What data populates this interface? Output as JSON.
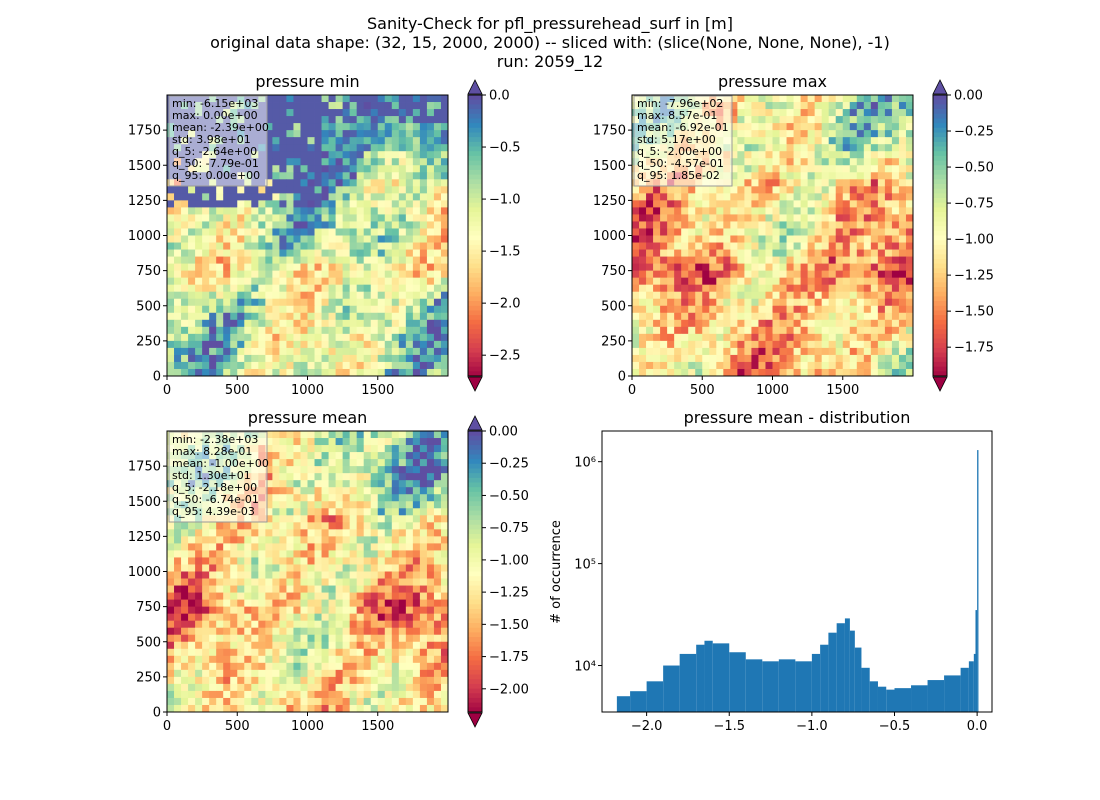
{
  "figure": {
    "title_lines": [
      "Sanity-Check for pfl_pressurehead_surf in [m]",
      "original data shape: (32, 15, 2000, 2000) -- sliced with: (slice(None, None, None), -1)",
      "run: 2059_12"
    ]
  },
  "chart_data": [
    {
      "type": "heatmap",
      "title": "pressure min",
      "colormap": "Spectral",
      "xlim": [
        0,
        2000
      ],
      "ylim": [
        0,
        2000
      ],
      "x_ticks": [
        "0",
        "500",
        "1000",
        "1500"
      ],
      "y_ticks": [
        "0",
        "250",
        "500",
        "750",
        "1000",
        "1250",
        "1500",
        "1750"
      ],
      "colorbar": {
        "range": [
          -2.7,
          0.0
        ],
        "extend": "both",
        "ticks": [
          "0.0",
          "−0.5",
          "−1.0",
          "−1.5",
          "−2.0",
          "−2.5"
        ]
      },
      "stats": [
        "min: -6.15e+03",
        "max: 0.00e+00",
        "mean: -2.39e+00",
        "std: 3.98e+01",
        "q_5: -2.64e+00",
        "q_50: -7.79e-01",
        "q_95: 0.00e+00"
      ]
    },
    {
      "type": "heatmap",
      "title": "pressure max",
      "colormap": "Spectral",
      "xlim": [
        0,
        2000
      ],
      "ylim": [
        0,
        2000
      ],
      "x_ticks": [
        "0",
        "500",
        "1000",
        "1500"
      ],
      "y_ticks": [
        "0",
        "250",
        "500",
        "750",
        "1000",
        "1250",
        "1500",
        "1750"
      ],
      "colorbar": {
        "range": [
          -1.95,
          0.0
        ],
        "extend": "both",
        "ticks": [
          "0.00",
          "−0.25",
          "−0.50",
          "−0.75",
          "−1.00",
          "−1.25",
          "−1.50",
          "−1.75"
        ]
      },
      "stats": [
        "min: -7.96e+02",
        "max: 8.57e-01",
        "mean: -6.92e-01",
        "std: 5.17e+00",
        "q_5: -2.00e+00",
        "q_50: -4.57e-01",
        "q_95: 1.85e-02"
      ]
    },
    {
      "type": "heatmap",
      "title": "pressure mean",
      "colormap": "Spectral",
      "xlim": [
        0,
        2000
      ],
      "ylim": [
        0,
        2000
      ],
      "x_ticks": [
        "0",
        "500",
        "1000",
        "1500"
      ],
      "y_ticks": [
        "0",
        "250",
        "500",
        "750",
        "1000",
        "1250",
        "1500",
        "1750"
      ],
      "colorbar": {
        "range": [
          -2.18,
          0.0
        ],
        "extend": "both",
        "ticks": [
          "0.00",
          "−0.25",
          "−0.50",
          "−0.75",
          "−1.00",
          "−1.25",
          "−1.50",
          "−1.75",
          "−2.00"
        ]
      },
      "stats": [
        "min: -2.38e+03",
        "max: 8.28e-01",
        "mean: -1.00e+00",
        "std: 1.30e+01",
        "q_5: -2.18e+00",
        "q_50: -6.74e-01",
        "q_95: 4.39e-03"
      ]
    },
    {
      "type": "bar",
      "subtype": "histogram",
      "title": "pressure mean - distribution",
      "ylabel": "# of occurrence",
      "yscale": "log",
      "xlim": [
        -2.27,
        0.09
      ],
      "ylim": [
        3500,
        2000000
      ],
      "x_ticks": [
        "−2.0",
        "−1.5",
        "−1.0",
        "−0.5",
        "0.0"
      ],
      "y_ticks": [
        "10⁴",
        "10⁵",
        "10⁶"
      ],
      "bar_color": "#1f77b4",
      "bins": [
        -2.18,
        -2.1,
        -2.0,
        -1.9,
        -1.8,
        -1.7,
        -1.65,
        -1.6,
        -1.5,
        -1.4,
        -1.3,
        -1.2,
        -1.1,
        -1.0,
        -0.95,
        -0.9,
        -0.85,
        -0.8,
        -0.77,
        -0.74,
        -0.7,
        -0.65,
        -0.6,
        -0.55,
        -0.5,
        -0.4,
        -0.3,
        -0.2,
        -0.1,
        -0.05,
        -0.02,
        -0.01,
        0.0
      ],
      "counts": [
        5000,
        5600,
        7000,
        10000,
        13000,
        16000,
        17500,
        16500,
        13500,
        11500,
        11000,
        11500,
        11000,
        13000,
        16000,
        21000,
        26000,
        29000,
        22000,
        15000,
        9500,
        7000,
        6200,
        5800,
        6000,
        6400,
        7200,
        8000,
        9500,
        11000,
        13000,
        35000,
        1300000
      ]
    }
  ]
}
